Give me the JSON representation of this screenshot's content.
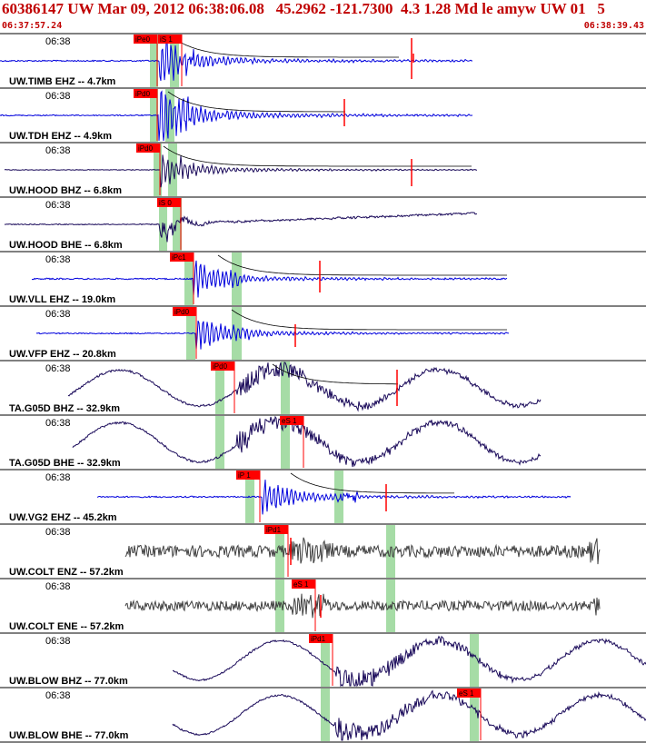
{
  "header": {
    "title": "60386147 UW Mar 09, 2012 06:38:06.08   45.2962 -121.7300  4.3 1.28 Md le amyw UW 01   5",
    "start_time": "06:37:57.24",
    "end_time": "06:38:39.43"
  },
  "colors": {
    "header_text": "#c00000",
    "pick": "#ff0000",
    "pick_window": "#a6dca6",
    "trace_blue": "#0000dd",
    "trace_navy": "#1a0a5a",
    "trace_gray": "#404040",
    "coda": "#000000"
  },
  "traces": [
    {
      "time_label": "06:38",
      "station_label": "UW.TIMB EHZ -- 4.7km",
      "color": "trace_blue",
      "picks": [
        {
          "label": "iPe0"
        },
        {
          "label": "iS 1"
        }
      ]
    },
    {
      "time_label": "06:38",
      "station_label": "UW.TDH EHZ -- 4.9km",
      "color": "trace_blue",
      "picks": [
        {
          "label": "iPd0"
        }
      ]
    },
    {
      "time_label": "06:38",
      "station_label": "UW.HOOD BHZ -- 6.8km",
      "color": "trace_navy",
      "picks": [
        {
          "label": "iPd0"
        }
      ]
    },
    {
      "time_label": "06:38",
      "station_label": "UW.HOOD BHE -- 6.8km",
      "color": "trace_navy",
      "picks": [
        {
          "label": "iS 0"
        }
      ]
    },
    {
      "time_label": "06:38",
      "station_label": "UW.VLL EHZ -- 19.0km",
      "color": "trace_blue",
      "picks": [
        {
          "label": "iPc1"
        }
      ]
    },
    {
      "time_label": "06:38",
      "station_label": "UW.VFP EHZ -- 20.8km",
      "color": "trace_blue",
      "picks": [
        {
          "label": "iPd0"
        }
      ]
    },
    {
      "time_label": "06:38",
      "station_label": "TA.G05D BHZ -- 32.9km",
      "color": "trace_navy",
      "picks": [
        {
          "label": "iPd0"
        }
      ]
    },
    {
      "time_label": "06:38",
      "station_label": "TA.G05D BHE -- 32.9km",
      "color": "trace_navy",
      "picks": [
        {
          "label": "eS 1"
        }
      ]
    },
    {
      "time_label": "06:38",
      "station_label": "UW.VG2 EHZ -- 45.2km",
      "color": "trace_blue",
      "picks": [
        {
          "label": "iP 1"
        }
      ]
    },
    {
      "time_label": "06:38",
      "station_label": "UW.COLT ENZ -- 57.2km",
      "color": "trace_gray",
      "picks": [
        {
          "label": "iPd1"
        }
      ]
    },
    {
      "time_label": "06:38",
      "station_label": "UW.COLT ENE -- 57.2km",
      "color": "trace_gray",
      "picks": [
        {
          "label": "eS 1"
        }
      ]
    },
    {
      "time_label": "06:38",
      "station_label": "UW.BLOW BHZ -- 77.0km",
      "color": "trace_navy",
      "picks": [
        {
          "label": "iPd1"
        }
      ]
    },
    {
      "time_label": "06:38",
      "station_label": "UW.BLOW BHE -- 77.0km",
      "color": "trace_navy",
      "picks": [
        {
          "label": "eS 1"
        }
      ]
    }
  ]
}
